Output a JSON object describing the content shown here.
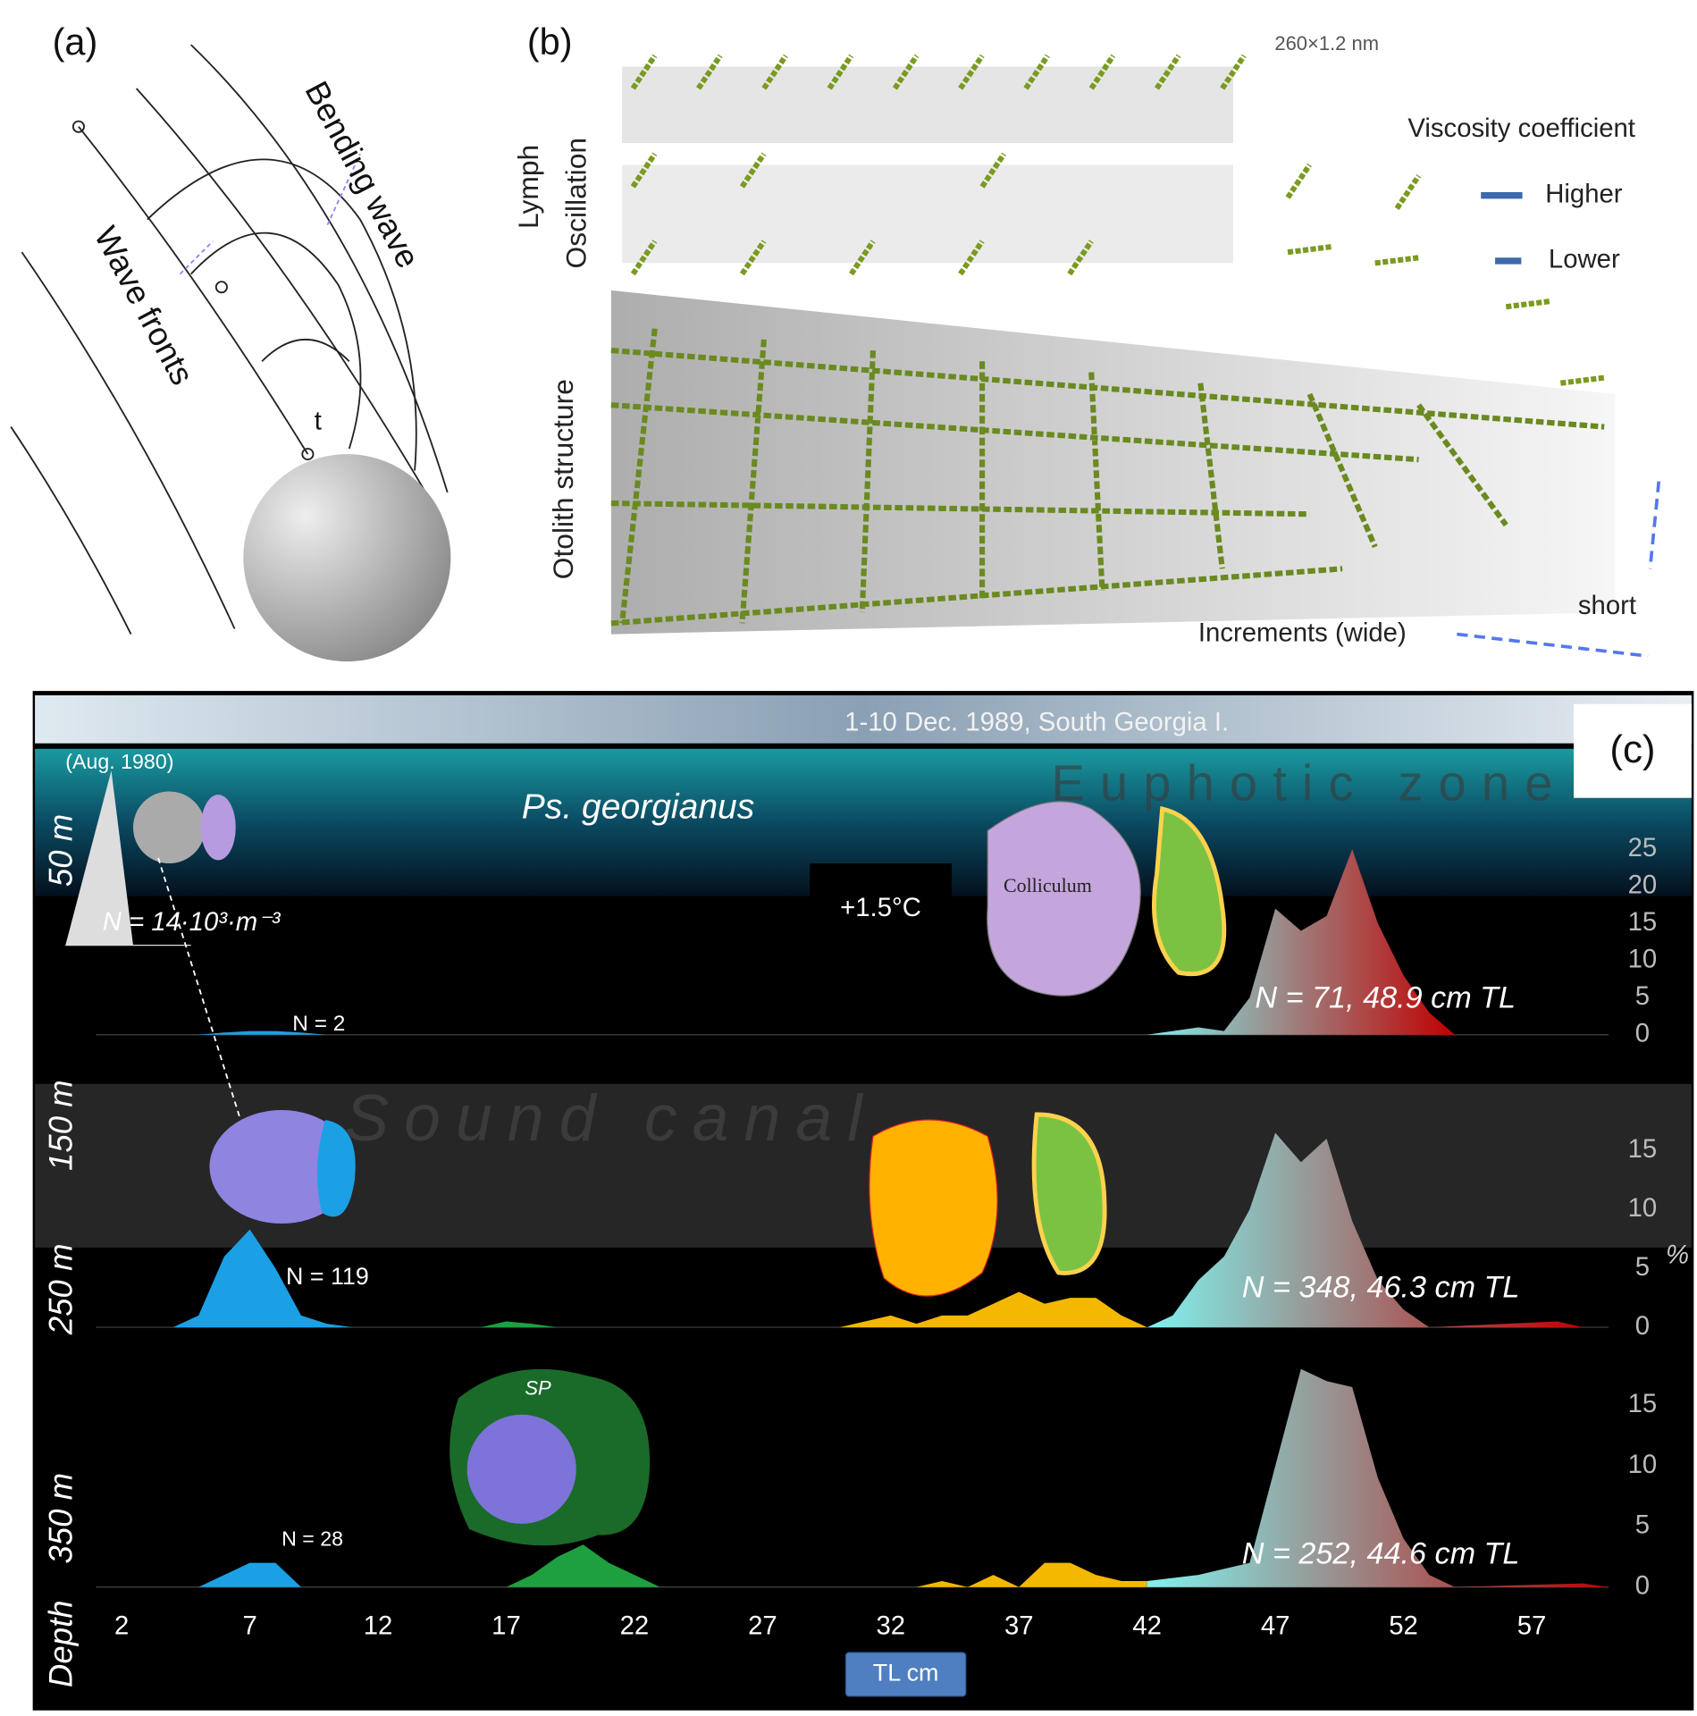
{
  "panel_a": {
    "label": "(a)",
    "texts": [
      "Bending wave",
      "Wave fronts",
      "t"
    ]
  },
  "panel_b": {
    "label": "(b)",
    "scale": "260×1.2 nm",
    "legend_title": "Viscosity coefficient",
    "legend": [
      "Higher",
      "Lower"
    ],
    "side_labels": [
      "Lymph",
      "Oscillation",
      "Otolith structure"
    ],
    "axis_labels": [
      "Increments (wide)",
      "short"
    ]
  },
  "panel_c": {
    "label": "(c)",
    "banner": "1-10 Dec. 1989, South Georgia I.",
    "zones": [
      "Euphotic zone",
      "Sound canal"
    ],
    "species": "Ps. georgianus",
    "date_note": "(Aug. 1980)",
    "density": "N = 14·10³·m⁻³",
    "temperature": "+1.5°C",
    "colliculum": "Colliculum",
    "sp": "SP",
    "depth_labels": [
      "50 m",
      "150 m",
      "250 m",
      "350 m",
      "Depth"
    ],
    "unit": "%",
    "x_label": "TL cm"
  },
  "chart_data": [
    {
      "type": "area",
      "xlim": [
        1,
        60
      ],
      "ylim": [
        0,
        25
      ],
      "yticks": [
        0,
        5,
        10,
        15,
        20,
        25
      ],
      "annotations": [
        "N = 2",
        "N = 71, 48.9 cm TL"
      ],
      "series": [
        {
          "color": "#1ba0e6",
          "x": [
            5,
            6,
            7,
            8,
            9,
            10
          ],
          "values": [
            0,
            0.3,
            0.5,
            0.5,
            0.3,
            0
          ]
        },
        {
          "colors": [
            "#7ff3f0",
            "#c00000"
          ],
          "x": [
            42,
            43,
            44,
            45,
            46,
            47,
            48,
            49,
            50,
            51,
            52,
            53,
            54
          ],
          "values": [
            0,
            0.5,
            1,
            0.5,
            5,
            17,
            14,
            16,
            25,
            15,
            8,
            3,
            0
          ]
        }
      ]
    },
    {
      "type": "area",
      "xlim": [
        1,
        60
      ],
      "ylim": [
        0,
        20
      ],
      "yticks": [
        0,
        5,
        10,
        15
      ],
      "annotations": [
        "N = 119",
        "N = 348, 46.3 cm TL"
      ],
      "series": [
        {
          "color": "#1ba0e6",
          "x": [
            4,
            5,
            6,
            7,
            8,
            9,
            10,
            11
          ],
          "values": [
            0,
            1,
            6,
            8.3,
            5,
            1,
            0.3,
            0
          ]
        },
        {
          "color": "#1ea040",
          "x": [
            16,
            17,
            18,
            19
          ],
          "values": [
            0,
            0.5,
            0.3,
            0
          ]
        },
        {
          "color": "#f5b800",
          "x": [
            30,
            31,
            32,
            33,
            34,
            35,
            36,
            37,
            38,
            39,
            40,
            41,
            42
          ],
          "values": [
            0,
            0.5,
            1,
            0.3,
            1,
            1,
            2,
            3,
            2,
            2.5,
            2.5,
            1,
            0
          ]
        },
        {
          "colors": [
            "#7ff3f0",
            "#c00000"
          ],
          "x": [
            42,
            43,
            44,
            45,
            46,
            47,
            48,
            49,
            50,
            51,
            52,
            53,
            58,
            59
          ],
          "values": [
            0,
            1,
            4,
            6,
            10,
            16.5,
            14,
            16,
            9,
            4,
            1.5,
            0,
            0.5,
            0
          ]
        }
      ]
    },
    {
      "type": "area",
      "xlim": [
        1,
        60
      ],
      "ylim": [
        0,
        20
      ],
      "yticks": [
        0,
        5,
        10,
        15
      ],
      "xticks": [
        2,
        7,
        12,
        17,
        22,
        27,
        32,
        37,
        42,
        47,
        52,
        57
      ],
      "annotations": [
        "N = 28",
        "N = 252, 44.6 cm TL"
      ],
      "series": [
        {
          "color": "#1ba0e6",
          "x": [
            5,
            6,
            7,
            8,
            9
          ],
          "values": [
            0,
            1,
            2,
            2,
            0
          ]
        },
        {
          "color": "#1ea040",
          "x": [
            17,
            18,
            19,
            20,
            21,
            22,
            23
          ],
          "values": [
            0,
            1,
            2.5,
            3.5,
            2,
            1,
            0
          ]
        },
        {
          "color": "#f5b800",
          "x": [
            33,
            34,
            35,
            36,
            37,
            38,
            39,
            40,
            41,
            42
          ],
          "values": [
            0,
            0.5,
            0,
            1,
            0,
            2,
            2,
            1,
            0.5,
            0.5
          ]
        },
        {
          "colors": [
            "#7ff3f0",
            "#c00000"
          ],
          "x": [
            42,
            44,
            46,
            47,
            48,
            49,
            50,
            51,
            52,
            53,
            54,
            59,
            60
          ],
          "values": [
            0.5,
            1,
            2,
            10,
            18,
            17,
            16.5,
            9,
            4,
            1,
            0,
            0.3,
            0
          ]
        }
      ]
    }
  ]
}
